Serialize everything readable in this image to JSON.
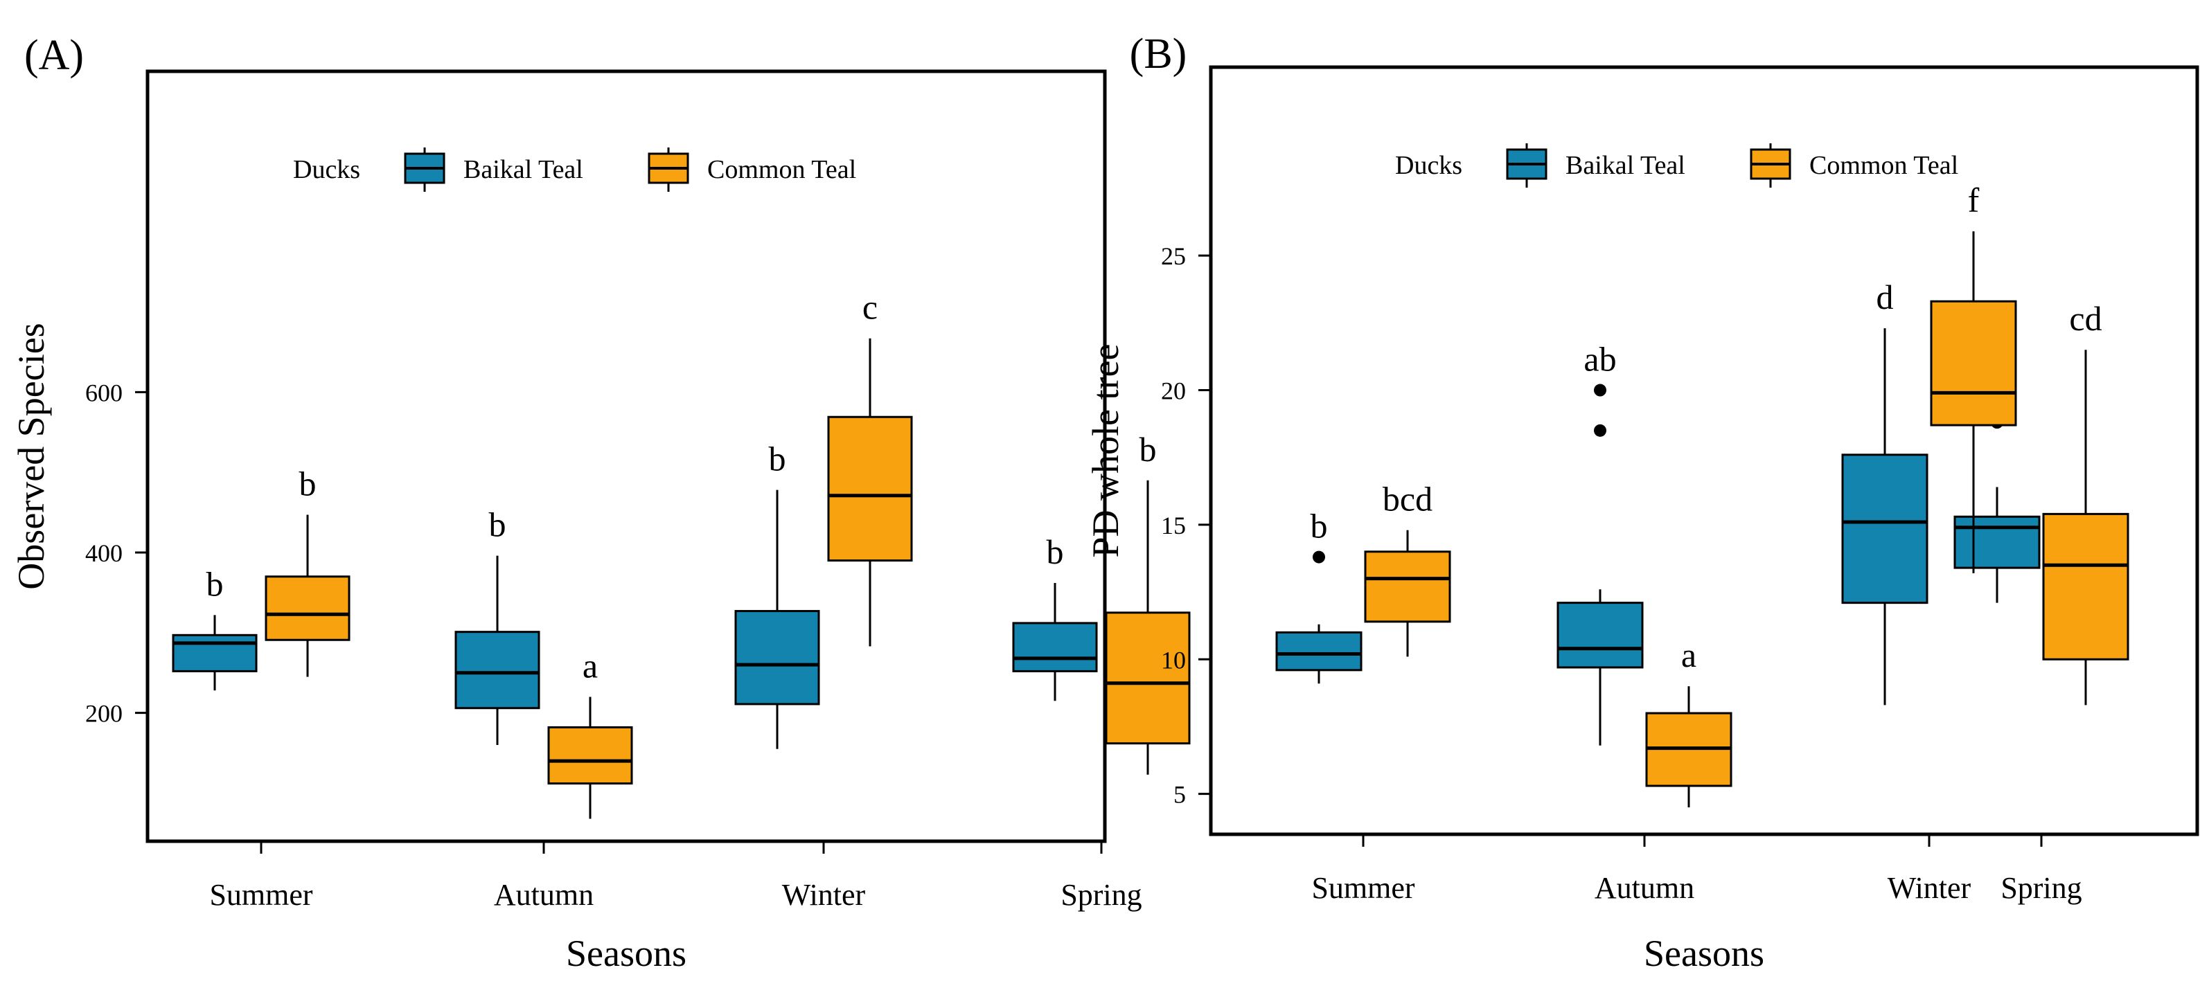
{
  "colors": {
    "baikal": "#1384AE",
    "common": "#F9A20F",
    "stroke": "#000000"
  },
  "chart_data": [
    {
      "type": "box",
      "panel_label": "(A)",
      "xlabel": "Seasons",
      "ylabel": "Observed Species",
      "categories": [
        "Summer",
        "Autumn",
        "Winter",
        "Spring"
      ],
      "yticks": [
        200,
        400,
        600
      ],
      "ylim": [
        40,
        1000
      ],
      "legend": {
        "title": "Ducks",
        "placement": "top-center"
      },
      "series": [
        {
          "name": "Baikal Teal",
          "boxes": [
            {
              "min": 228,
              "q1": 252,
              "median": 287,
              "q3": 297,
              "max": 322,
              "letter": "b",
              "outliers": []
            },
            {
              "min": 160,
              "q1": 206,
              "median": 250,
              "q3": 301,
              "max": 396,
              "letter": "b",
              "outliers": []
            },
            {
              "min": 155,
              "q1": 211,
              "median": 260,
              "q3": 327,
              "max": 478,
              "letter": "b",
              "outliers": []
            },
            {
              "min": 215,
              "q1": 252,
              "median": 268,
              "q3": 312,
              "max": 362,
              "letter": "b",
              "outliers": []
            }
          ]
        },
        {
          "name": "Common Teal",
          "boxes": [
            {
              "min": 245,
              "q1": 291,
              "median": 323,
              "q3": 370,
              "max": 447,
              "letter": "b",
              "outliers": []
            },
            {
              "min": 68,
              "q1": 112,
              "median": 140,
              "q3": 182,
              "max": 220,
              "letter": "a",
              "outliers": []
            },
            {
              "min": 283,
              "q1": 390,
              "median": 471,
              "q3": 569,
              "max": 667,
              "letter": "c",
              "outliers": []
            },
            {
              "min": 123,
              "q1": 162,
              "median": 237,
              "q3": 325,
              "max": 490,
              "letter": "b",
              "outliers": []
            }
          ]
        }
      ]
    },
    {
      "type": "box",
      "panel_label": "(B)",
      "xlabel": "Seasons",
      "ylabel": "PD whole tree",
      "categories": [
        "Summer",
        "Autumn",
        "Winter",
        "Spring"
      ],
      "yticks": [
        5,
        10,
        15,
        20,
        25
      ],
      "ylim": [
        3.5,
        32
      ],
      "legend": {
        "title": "Ducks",
        "placement": "top-center"
      },
      "series": [
        {
          "name": "Baikal Teal",
          "boxes": [
            {
              "min": 9.1,
              "q1": 9.6,
              "median": 10.2,
              "q3": 11.0,
              "max": 11.3,
              "letter": "b",
              "outliers": [
                13.8
              ]
            },
            {
              "min": 6.8,
              "q1": 9.7,
              "median": 10.4,
              "q3": 12.1,
              "max": 12.6,
              "letter": "ab",
              "outliers": [
                18.5,
                20.0
              ]
            },
            {
              "min": 8.3,
              "q1": 12.1,
              "median": 15.1,
              "q3": 17.6,
              "max": 22.3,
              "letter": "d",
              "outliers": []
            },
            {
              "min": 12.1,
              "q1": 13.4,
              "median": 14.9,
              "q3": 15.3,
              "max": 16.4,
              "letter": "d",
              "outliers": [
                18.8
              ]
            }
          ]
        },
        {
          "name": "Common Teal",
          "boxes": [
            {
              "min": 10.1,
              "q1": 11.4,
              "median": 13.0,
              "q3": 14.0,
              "max": 14.8,
              "letter": "bcd",
              "outliers": []
            },
            {
              "min": 4.5,
              "q1": 5.3,
              "median": 6.7,
              "q3": 8.0,
              "max": 9.0,
              "letter": "a",
              "outliers": []
            },
            {
              "min": 13.2,
              "q1": 18.7,
              "median": 19.9,
              "q3": 23.3,
              "max": 25.9,
              "letter": "f",
              "outliers": []
            },
            {
              "min": 8.3,
              "q1": 10.0,
              "median": 13.5,
              "q3": 15.4,
              "max": 21.5,
              "letter": "cd",
              "outliers": []
            }
          ]
        }
      ]
    }
  ]
}
